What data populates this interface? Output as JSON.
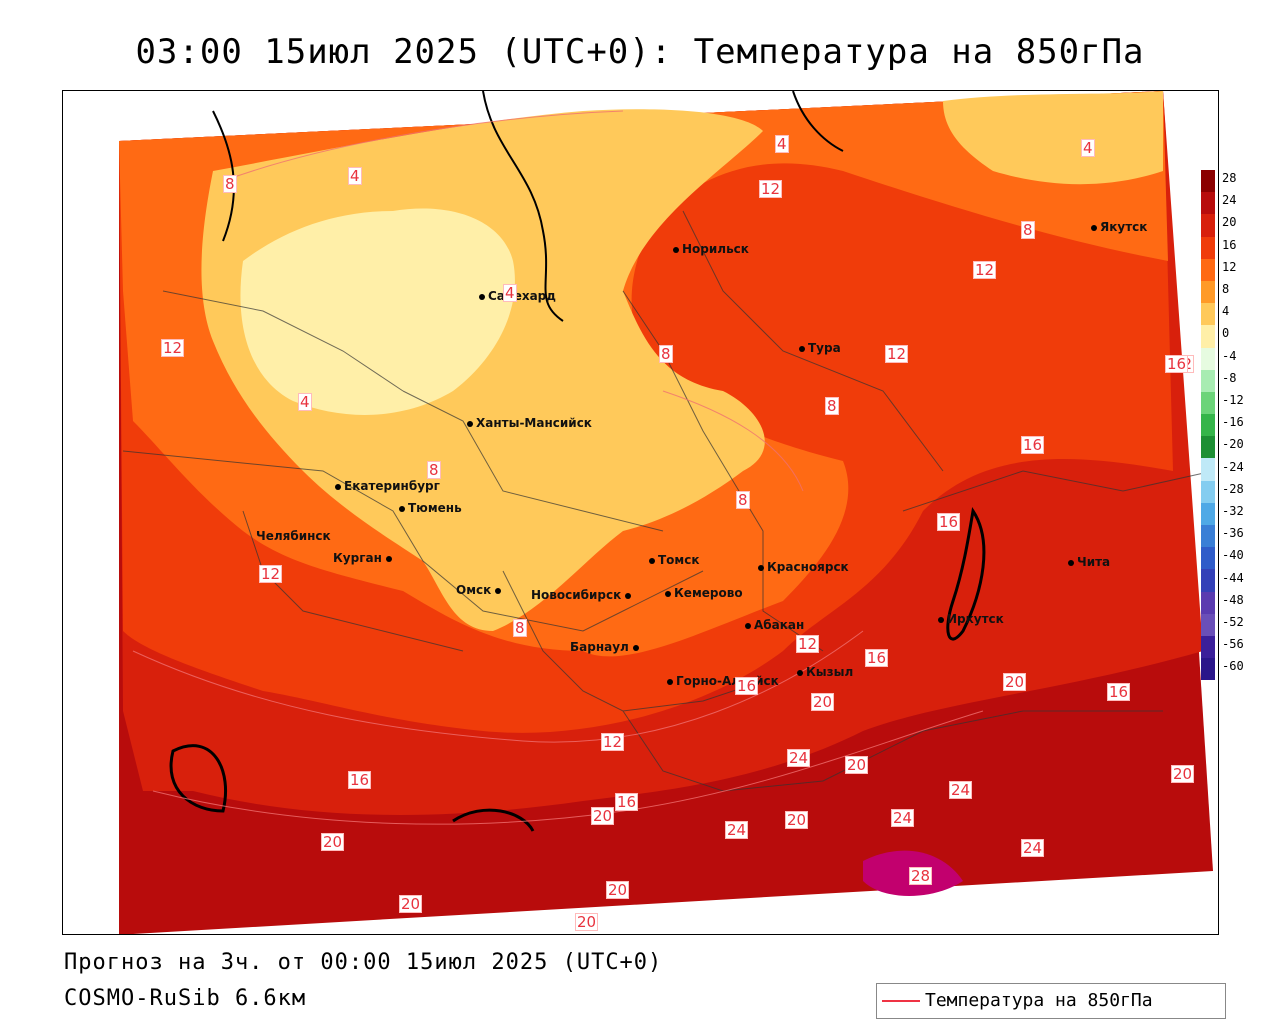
{
  "header": {
    "title": "03:00 15июл 2025 (UTC+0): Температура на 850гПа"
  },
  "footer": {
    "forecast_line": "Прогноз на 3ч. от 00:00 15июл 2025 (UTC+0)",
    "model_line": "COSMO-RuSib 6.6км"
  },
  "legend": {
    "label": "Температура на 850гПа",
    "line_color": "#ef3344"
  },
  "colorbar": {
    "ticks": [
      "28",
      "24",
      "20",
      "16",
      "12",
      "8",
      "4",
      "0",
      "-4",
      "-8",
      "-12",
      "-16",
      "-20",
      "-24",
      "-28",
      "-32",
      "-36",
      "-40",
      "-44",
      "-48",
      "-52",
      "-56",
      "-60"
    ],
    "colors": [
      "#8b0000",
      "#b80c0c",
      "#d8200c",
      "#f03c0a",
      "#ff6a14",
      "#ff9a28",
      "#ffc95a",
      "#ffefa8",
      "#e6fbe0",
      "#a8ecb2",
      "#6cd479",
      "#35b54a",
      "#1d8f34",
      "#bfe9f7",
      "#84cdf0",
      "#4fa9e6",
      "#3a7fd6",
      "#2f5cc9",
      "#3441b8",
      "#5a3bb0",
      "#6a4fb8",
      "#3b1f9a",
      "#2a168a"
    ]
  },
  "cities": [
    {
      "name": "Норильск"
    },
    {
      "name": "Якутск"
    },
    {
      "name": "Салехард"
    },
    {
      "name": "Тура"
    },
    {
      "name": "Ханты-Мансийск"
    },
    {
      "name": "Екатеринбург"
    },
    {
      "name": "Тюмень"
    },
    {
      "name": "Челябинск"
    },
    {
      "name": "Курган"
    },
    {
      "name": "Томск"
    },
    {
      "name": "Красноярск"
    },
    {
      "name": "Омск"
    },
    {
      "name": "Новосибирск"
    },
    {
      "name": "Кемерово"
    },
    {
      "name": "Абакан"
    },
    {
      "name": "Барнаул"
    },
    {
      "name": "Иркутск"
    },
    {
      "name": "Чита"
    },
    {
      "name": "Горно-Алтайск"
    },
    {
      "name": "Кызыл"
    }
  ],
  "contour_labels": [
    "4",
    "4",
    "4",
    "4",
    "4",
    "8",
    "8",
    "8",
    "8",
    "8",
    "8",
    "8",
    "12",
    "12",
    "12",
    "12",
    "12",
    "12",
    "12",
    "12",
    "16",
    "16",
    "16",
    "16",
    "16",
    "16",
    "16",
    "16",
    "20",
    "20",
    "20",
    "20",
    "20",
    "20",
    "20",
    "20",
    "20",
    "20",
    "24",
    "24",
    "24",
    "24",
    "24",
    "28"
  ]
}
